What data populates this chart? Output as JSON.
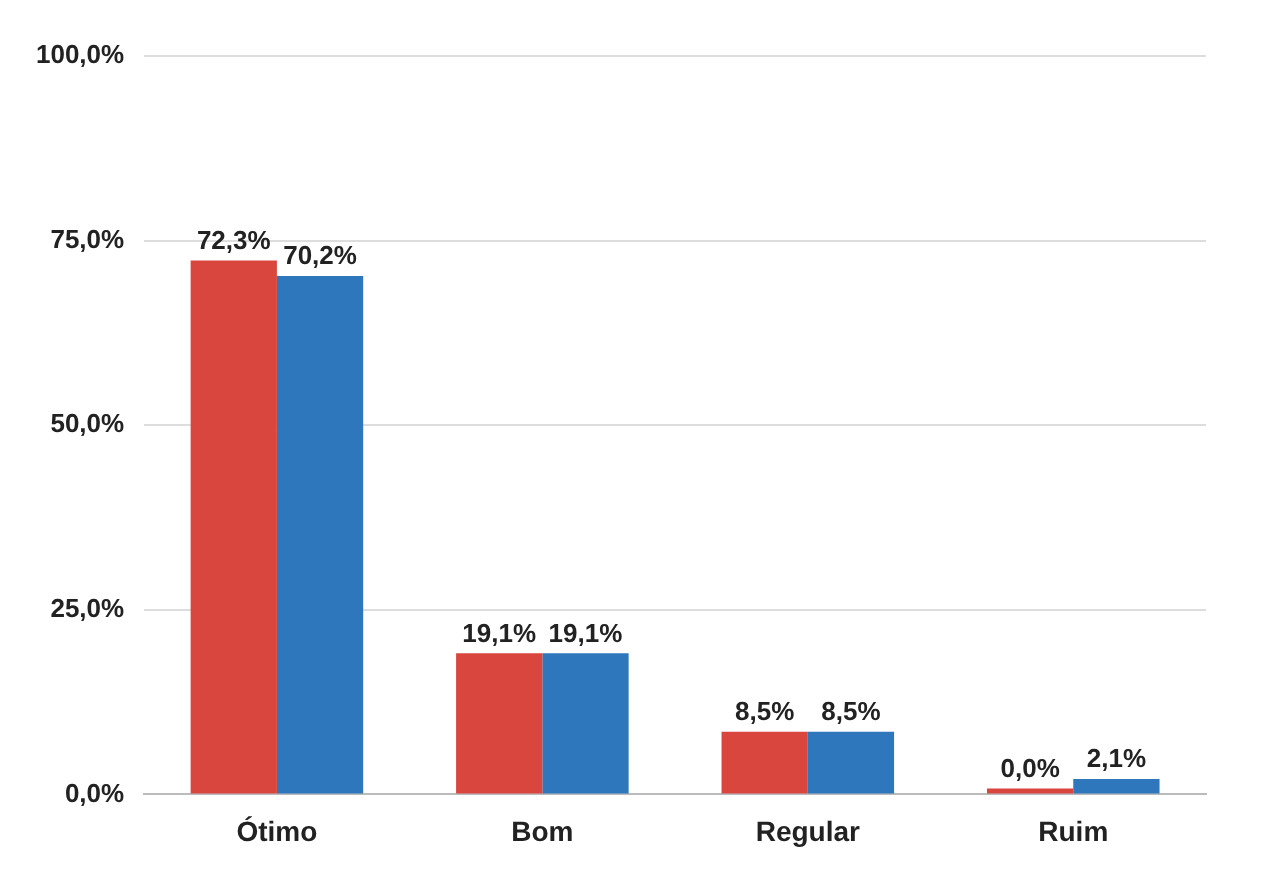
{
  "chart_data": {
    "type": "bar",
    "categories": [
      "Ótimo",
      "Bom",
      "Regular",
      "Ruim"
    ],
    "series": [
      {
        "color": "#d9463e",
        "values": [
          72.3,
          19.1,
          8.5,
          0.0
        ],
        "value_labels": [
          "72,3%",
          "19,1%",
          "8,5%",
          "0,0%"
        ]
      },
      {
        "color": "#2f77bd",
        "values": [
          70.2,
          19.1,
          8.5,
          2.1
        ],
        "value_labels": [
          "70,2%",
          "19,1%",
          "8,5%",
          "2,1%"
        ]
      }
    ],
    "ylim": [
      0,
      100
    ],
    "yticks": [
      {
        "value": 0,
        "label": "0,0%"
      },
      {
        "value": 25,
        "label": "25,0%"
      },
      {
        "value": 50,
        "label": "50,0%"
      },
      {
        "value": 75,
        "label": "75,0%"
      },
      {
        "value": 100,
        "label": "100,0%"
      }
    ],
    "grid": "y",
    "legend": false
  }
}
